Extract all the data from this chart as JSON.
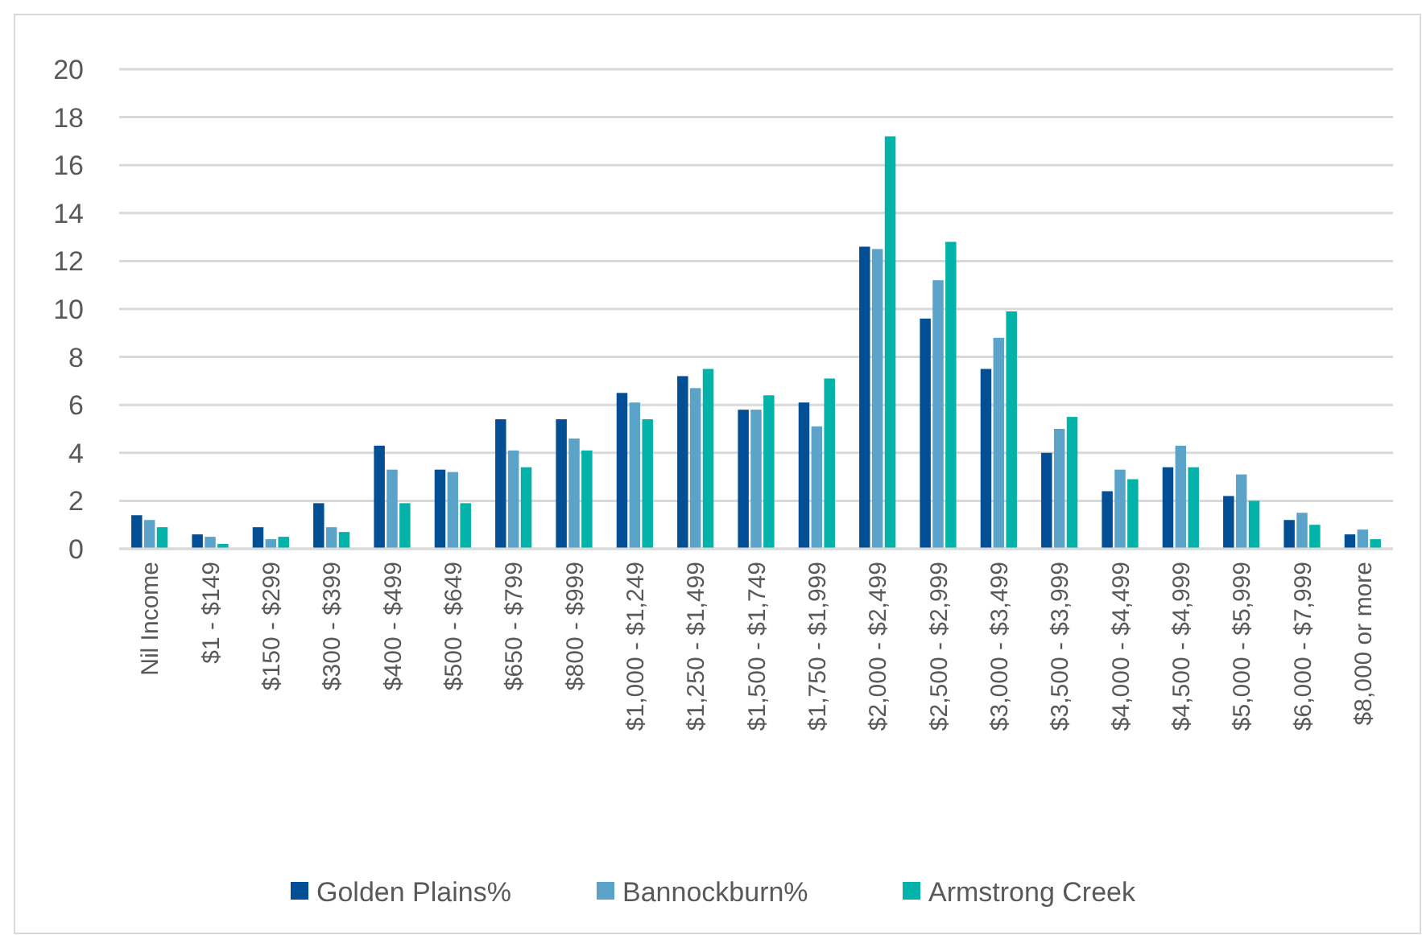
{
  "chart_data": {
    "type": "bar",
    "categories": [
      "Nil Income",
      "$1 - $149",
      "$150 - $299",
      "$300 - $399",
      "$400 - $499",
      "$500 - $649",
      "$650 - $799",
      "$800 - $999",
      "$1,000 - $1,249",
      "$1,250 - $1,499",
      "$1,500 - $1,749",
      "$1,750 - $1,999",
      "$2,000 - $2,499",
      "$2,500 - $2,999",
      "$3,000 - $3,499",
      "$3,500 - $3,999",
      "$4,000 - $4,499",
      "$4,500 - $4,999",
      "$5,000 - $5,999",
      "$6,000 - $7,999",
      "$8,000 or more"
    ],
    "series": [
      {
        "name": "Golden Plains%",
        "color": "#034f96",
        "values": [
          1.4,
          0.6,
          0.9,
          1.9,
          4.3,
          3.3,
          5.4,
          5.4,
          6.5,
          7.2,
          5.8,
          6.1,
          12.6,
          9.6,
          7.5,
          4.0,
          2.4,
          3.4,
          2.2,
          1.2,
          0.6
        ]
      },
      {
        "name": "Bannockburn%",
        "color": "#5ba3c9",
        "values": [
          1.2,
          0.5,
          0.4,
          0.9,
          3.3,
          3.2,
          4.1,
          4.6,
          6.1,
          6.7,
          5.8,
          5.1,
          12.5,
          11.2,
          8.8,
          5.0,
          3.3,
          4.3,
          3.1,
          1.5,
          0.8
        ]
      },
      {
        "name": "Armstrong Creek",
        "color": "#03b2a9",
        "values": [
          0.9,
          0.2,
          0.5,
          0.7,
          1.9,
          1.9,
          3.4,
          4.1,
          5.4,
          7.5,
          6.4,
          7.1,
          17.2,
          12.8,
          9.9,
          5.5,
          2.9,
          3.4,
          2.0,
          1.0,
          0.4
        ]
      }
    ],
    "ylim": [
      0,
      20
    ],
    "yticks": [
      0,
      2,
      4,
      6,
      8,
      10,
      12,
      14,
      16,
      18,
      20
    ],
    "grid": "y",
    "legend": "bottom"
  }
}
